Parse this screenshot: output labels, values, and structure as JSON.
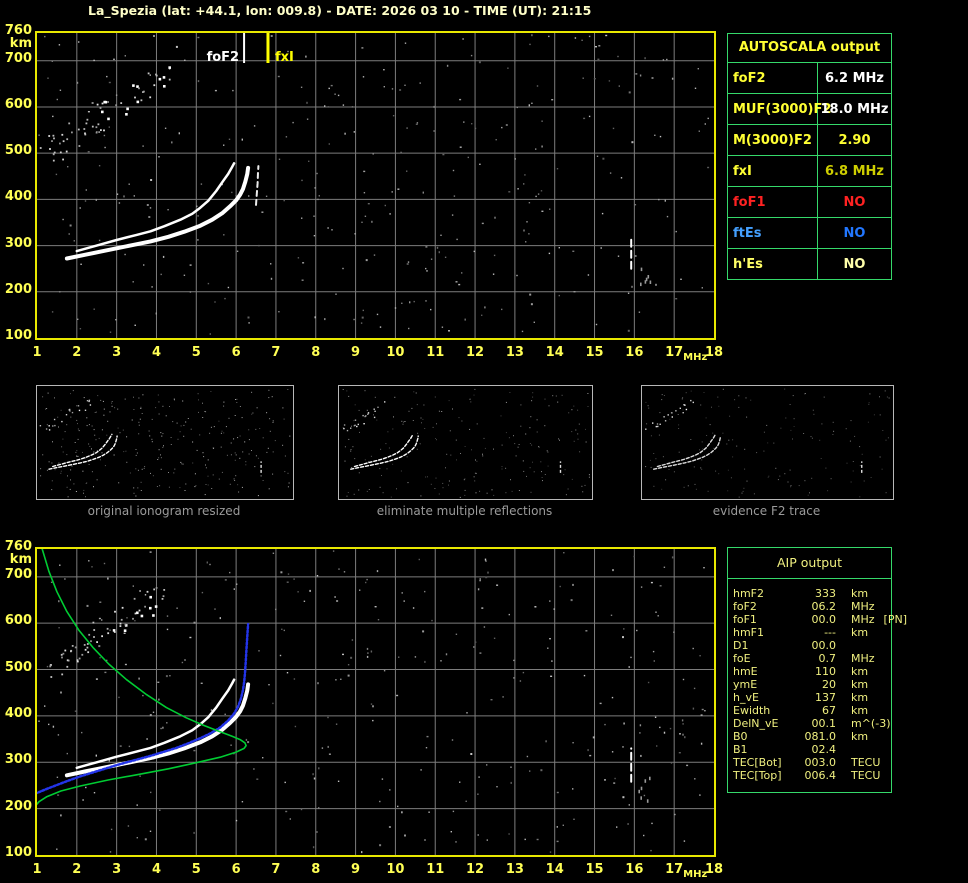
{
  "title": "La_Spezia (lat: +44.1, lon: 009.8) - DATE: 2026 03 10 - TIME (UT): 21:15",
  "colors": {
    "title": "#ffffc8",
    "axis_label": "#ffff55",
    "plot_border": "#e8e800",
    "grid": "#7d7d7d",
    "table_border": "#35d96a",
    "caption": "#9a9a9a",
    "trace_white": "#ffffff",
    "profile_green": "#00cc33",
    "restored_blue": "#2334e8",
    "marker_foF2": "#ffffff",
    "marker_fxI": "#ffff00"
  },
  "autoscala_table": {
    "title": "AUTOSCALA output",
    "title_color": "#ffff33",
    "rows": [
      {
        "label": "foF2",
        "value": "6.2 MHz",
        "label_color": "#ffff33",
        "value_color": "#ffffff"
      },
      {
        "label": "MUF(3000)F2",
        "value": "18.0 MHz",
        "label_color": "#ffff33",
        "value_color": "#ffffff"
      },
      {
        "label": "M(3000)F2",
        "value": "2.90",
        "label_color": "#ffff33",
        "value_color": "#ffff33"
      },
      {
        "label": "fxI",
        "value": "6.8 MHz",
        "label_color": "#ffff33",
        "value_color": "#cfcf00"
      },
      {
        "label": "foF1",
        "value": "NO",
        "label_color": "#ff2222",
        "value_color": "#ff2222"
      },
      {
        "label": "ftEs",
        "value": "NO",
        "label_color": "#44a0ff",
        "value_color": "#2277ff"
      },
      {
        "label": "h'Es",
        "value": "NO",
        "label_color": "#ffff66",
        "value_color": "#ffffaa"
      }
    ]
  },
  "aip_table": {
    "title": "AIP output",
    "text_color": "#f0f080",
    "rows": [
      {
        "label": "hmF2",
        "value": "333",
        "unit": "km",
        "note": ""
      },
      {
        "label": "foF2",
        "value": "06.2",
        "unit": "MHz",
        "note": ""
      },
      {
        "label": "foF1",
        "value": "00.0",
        "unit": "MHz",
        "note": "[PN]"
      },
      {
        "label": "hmF1",
        "value": "---",
        "unit": "km",
        "note": ""
      },
      {
        "label": "D1",
        "value": "00.0",
        "unit": "",
        "note": ""
      },
      {
        "label": "foE",
        "value": "0.7",
        "unit": "MHz",
        "note": ""
      },
      {
        "label": "hmE",
        "value": "110",
        "unit": "km",
        "note": ""
      },
      {
        "label": "ymE",
        "value": "20",
        "unit": "km",
        "note": ""
      },
      {
        "label": "h_vE",
        "value": "137",
        "unit": "km",
        "note": ""
      },
      {
        "label": "Ewidth",
        "value": "67",
        "unit": "km",
        "note": ""
      },
      {
        "label": "DelN_vE",
        "value": "00.1",
        "unit": "m^(-3)",
        "note": ""
      },
      {
        "label": "B0",
        "value": "081.0",
        "unit": "km",
        "note": ""
      },
      {
        "label": "B1",
        "value": "02.4",
        "unit": "",
        "note": ""
      },
      {
        "label": "TEC[Bot]",
        "value": "003.0",
        "unit": "TECU",
        "note": ""
      },
      {
        "label": "TEC[Top]",
        "value": "006.4",
        "unit": "TECU",
        "note": ""
      }
    ]
  },
  "thumbnails": [
    {
      "caption": "original ionogram resized"
    },
    {
      "caption": "eliminate multiple reflections"
    },
    {
      "caption": "evidence F2 trace"
    }
  ],
  "chart_data": [
    {
      "id": "scaled_ionogram_top",
      "type": "scatter",
      "title": "",
      "xlabel": "MHz",
      "ylabel": "km",
      "xlim": [
        1,
        18
      ],
      "ylim": [
        100,
        760
      ],
      "xticks": [
        1,
        2,
        3,
        4,
        5,
        6,
        7,
        8,
        9,
        10,
        11,
        12,
        13,
        14,
        15,
        16,
        17,
        18
      ],
      "yticks": [
        100,
        200,
        300,
        400,
        500,
        600,
        700,
        760
      ],
      "grid": true,
      "markers": [
        {
          "name": "foF2",
          "label": "foF2",
          "x": 6.2,
          "color": "#ffffff",
          "side": "left"
        },
        {
          "name": "fxI",
          "label": "fxI",
          "x": 6.8,
          "color": "#ffff00",
          "side": "right"
        }
      ],
      "series": [
        {
          "name": "F2 trace main",
          "color": "#ffffff",
          "width": 4,
          "points": [
            [
              1.75,
              272
            ],
            [
              2.2,
              280
            ],
            [
              2.6,
              287
            ],
            [
              3.0,
              294
            ],
            [
              3.4,
              301
            ],
            [
              3.85,
              309
            ],
            [
              4.3,
              319
            ],
            [
              4.7,
              330
            ],
            [
              5.1,
              343
            ],
            [
              5.4,
              356
            ],
            [
              5.65,
              370
            ],
            [
              5.85,
              385
            ],
            [
              6.0,
              398
            ],
            [
              6.1,
              410
            ],
            [
              6.17,
              422
            ],
            [
              6.23,
              438
            ],
            [
              6.28,
              455
            ],
            [
              6.3,
              468
            ]
          ]
        },
        {
          "name": "F2 trace upper branch",
          "color": "#ffffff",
          "width": 2.5,
          "points": [
            [
              2.0,
              288
            ],
            [
              2.5,
              300
            ],
            [
              3.0,
              312
            ],
            [
              3.5,
              323
            ],
            [
              3.85,
              331
            ],
            [
              4.2,
              342
            ],
            [
              4.6,
              356
            ],
            [
              4.9,
              369
            ],
            [
              5.1,
              382
            ],
            [
              5.3,
              397
            ],
            [
              5.5,
              418
            ],
            [
              5.65,
              437
            ],
            [
              5.8,
              455
            ],
            [
              5.9,
              470
            ],
            [
              5.95,
              478
            ]
          ]
        },
        {
          "name": "X-mode tail",
          "color": "#ededed",
          "width": 2,
          "dash": "5 4",
          "points": [
            [
              6.5,
              388
            ],
            [
              6.52,
              412
            ],
            [
              6.54,
              435
            ],
            [
              6.55,
              458
            ],
            [
              6.56,
              472
            ]
          ]
        },
        {
          "name": "interference streak 16 MHz",
          "color": "#ffffff",
          "width": 2,
          "dash": "7 4",
          "points": [
            [
              15.92,
              250
            ],
            [
              15.92,
              318
            ]
          ]
        }
      ],
      "noise_band": {
        "f": [
          1.15,
          4.35
        ],
        "km": [
          500,
          675
        ]
      }
    },
    {
      "id": "scaled_ionogram_bottom_with_profile",
      "type": "scatter",
      "title": "",
      "xlabel": "MHz",
      "ylabel": "km",
      "xlim": [
        1,
        18
      ],
      "ylim": [
        100,
        760
      ],
      "xticks": [
        1,
        2,
        3,
        4,
        5,
        6,
        7,
        8,
        9,
        10,
        11,
        12,
        13,
        14,
        15,
        16,
        17,
        18
      ],
      "yticks": [
        100,
        200,
        300,
        400,
        500,
        600,
        700,
        760
      ],
      "grid": true,
      "markers": [],
      "series": [
        {
          "name": "F2 trace main",
          "color": "#ffffff",
          "width": 4,
          "points": [
            [
              1.75,
              272
            ],
            [
              2.2,
              280
            ],
            [
              2.6,
              287
            ],
            [
              3.0,
              294
            ],
            [
              3.4,
              301
            ],
            [
              3.85,
              309
            ],
            [
              4.3,
              319
            ],
            [
              4.7,
              330
            ],
            [
              5.1,
              343
            ],
            [
              5.4,
              356
            ],
            [
              5.65,
              370
            ],
            [
              5.85,
              385
            ],
            [
              6.0,
              398
            ],
            [
              6.1,
              410
            ],
            [
              6.17,
              422
            ],
            [
              6.23,
              438
            ],
            [
              6.28,
              455
            ],
            [
              6.3,
              468
            ]
          ]
        },
        {
          "name": "F2 trace upper branch",
          "color": "#ffffff",
          "width": 2.5,
          "points": [
            [
              2.0,
              288
            ],
            [
              2.5,
              300
            ],
            [
              3.0,
              312
            ],
            [
              3.5,
              323
            ],
            [
              3.85,
              331
            ],
            [
              4.2,
              342
            ],
            [
              4.6,
              356
            ],
            [
              4.9,
              369
            ],
            [
              5.1,
              382
            ],
            [
              5.3,
              397
            ],
            [
              5.5,
              418
            ],
            [
              5.65,
              437
            ],
            [
              5.8,
              455
            ],
            [
              5.9,
              470
            ],
            [
              5.95,
              478
            ]
          ]
        },
        {
          "name": "interference streak 16 MHz",
          "color": "#ffffff",
          "width": 2,
          "dash": "7 4",
          "points": [
            [
              15.92,
              258
            ],
            [
              15.92,
              330
            ]
          ]
        },
        {
          "name": "restored trace (autoscaled)",
          "color": "#2334e8",
          "width": 2.5,
          "dash": "2 2",
          "points": [
            [
              0.95,
              232
            ],
            [
              1.2,
              241
            ],
            [
              1.5,
              251
            ],
            [
              1.8,
              261
            ],
            [
              2.1,
              270
            ],
            [
              2.4,
              278
            ],
            [
              2.7,
              286
            ],
            [
              3.0,
              294
            ],
            [
              3.3,
              301
            ],
            [
              3.6,
              308
            ],
            [
              3.9,
              315
            ],
            [
              4.2,
              323
            ],
            [
              4.5,
              331
            ],
            [
              4.8,
              341
            ],
            [
              5.1,
              352
            ],
            [
              5.35,
              362
            ],
            [
              5.6,
              375
            ],
            [
              5.8,
              390
            ],
            [
              5.95,
              405
            ],
            [
              6.05,
              420
            ],
            [
              6.12,
              437
            ],
            [
              6.17,
              455
            ],
            [
              6.2,
              472
            ],
            [
              6.22,
              490
            ],
            [
              6.24,
              515
            ],
            [
              6.26,
              545
            ],
            [
              6.28,
              572
            ],
            [
              6.3,
              598
            ]
          ]
        },
        {
          "name": "electron density profile N(h)",
          "color": "#00cc33",
          "width": 1.6,
          "points": [
            [
              1.13,
              760
            ],
            [
              1.3,
              712
            ],
            [
              1.5,
              668
            ],
            [
              1.75,
              625
            ],
            [
              2.05,
              585
            ],
            [
              2.4,
              548
            ],
            [
              2.8,
              512
            ],
            [
              3.25,
              478
            ],
            [
              3.75,
              446
            ],
            [
              4.25,
              418
            ],
            [
              4.75,
              396
            ],
            [
              5.2,
              379
            ],
            [
              5.6,
              366
            ],
            [
              5.9,
              356
            ],
            [
              6.1,
              349
            ],
            [
              6.22,
              342
            ],
            [
              6.25,
              336
            ],
            [
              6.2,
              330
            ],
            [
              6.0,
              322
            ],
            [
              5.6,
              311
            ],
            [
              5.0,
              299
            ],
            [
              4.3,
              286
            ],
            [
              3.5,
              273
            ],
            [
              2.8,
              262
            ],
            [
              2.1,
              249
            ],
            [
              1.6,
              238
            ],
            [
              1.25,
              226
            ],
            [
              1.05,
              215
            ],
            [
              0.95,
              205
            ]
          ]
        }
      ],
      "noise_band": {
        "f": [
          1.15,
          4.35
        ],
        "km": [
          500,
          675
        ]
      }
    }
  ]
}
